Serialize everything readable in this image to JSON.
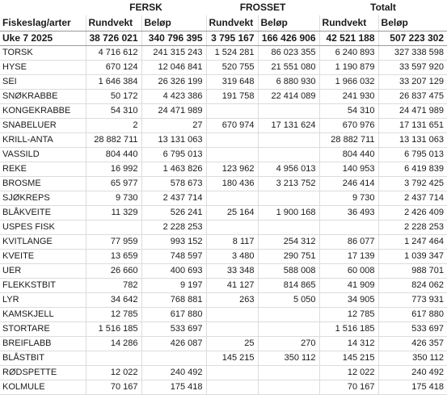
{
  "header": {
    "groups": [
      "FERSK",
      "FROSSET",
      "Totalt"
    ],
    "first_col": "Fiskeslag/arter",
    "sub": [
      "Rundvekt",
      "Beløp",
      "Rundvekt",
      "Beløp",
      "Rundvekt",
      "Beløp"
    ]
  },
  "week": {
    "label": "Uke 7 2025",
    "values": [
      "38 726 021",
      "340 796 395",
      "3 795 167",
      "166 426 906",
      "42 521 188",
      "507 223 302"
    ]
  },
  "rows": [
    {
      "name": "TORSK",
      "v": [
        "4 716 612",
        "241 315 243",
        "1 524 281",
        "86 023 355",
        "6 240 893",
        "327 338 598"
      ]
    },
    {
      "name": "HYSE",
      "v": [
        "670 124",
        "12 046 841",
        "520 755",
        "21 551 080",
        "1 190 879",
        "33 597 920"
      ]
    },
    {
      "name": "SEI",
      "v": [
        "1 646 384",
        "26 326 199",
        "319 648",
        "6 880 930",
        "1 966 032",
        "33 207 129"
      ]
    },
    {
      "name": "SNØKRABBE",
      "v": [
        "50 172",
        "4 423 386",
        "191 758",
        "22 414 089",
        "241 930",
        "26 837 475"
      ]
    },
    {
      "name": "KONGEKRABBE",
      "v": [
        "54 310",
        "24 471 989",
        "",
        "",
        "54 310",
        "24 471 989"
      ]
    },
    {
      "name": "SNABELUER",
      "v": [
        "2",
        "27",
        "670 974",
        "17 131 624",
        "670 976",
        "17 131 651"
      ]
    },
    {
      "name": "KRILL-ANTA",
      "v": [
        "28 882 711",
        "13 131 063",
        "",
        "",
        "28 882 711",
        "13 131 063"
      ]
    },
    {
      "name": "VASSILD",
      "v": [
        "804 440",
        "6 795 013",
        "",
        "",
        "804 440",
        "6 795 013"
      ]
    },
    {
      "name": "REKE",
      "v": [
        "16 992",
        "1 463 826",
        "123 962",
        "4 956 013",
        "140 953",
        "6 419 839"
      ]
    },
    {
      "name": "BROSME",
      "v": [
        "65 977",
        "578 673",
        "180 436",
        "3 213 752",
        "246 414",
        "3 792 425"
      ]
    },
    {
      "name": "SJØKREPS",
      "v": [
        "9 730",
        "2 437 714",
        "",
        "",
        "9 730",
        "2 437 714"
      ]
    },
    {
      "name": "BLÅKVEITE",
      "v": [
        "11 329",
        "526 241",
        "25 164",
        "1 900 168",
        "36 493",
        "2 426 409"
      ]
    },
    {
      "name": "USPES FISK",
      "v": [
        "",
        "2 228 253",
        "",
        "",
        "",
        "2 228 253"
      ]
    },
    {
      "name": "KVITLANGE",
      "v": [
        "77 959",
        "993 152",
        "8 117",
        "254 312",
        "86 077",
        "1 247 464"
      ]
    },
    {
      "name": "KVEITE",
      "v": [
        "13 659",
        "748 597",
        "3 480",
        "290 751",
        "17 139",
        "1 039 347"
      ]
    },
    {
      "name": "UER",
      "v": [
        "26 660",
        "400 693",
        "33 348",
        "588 008",
        "60 008",
        "988 701"
      ]
    },
    {
      "name": "FLEKKSTBIT",
      "v": [
        "782",
        "9 197",
        "41 127",
        "814 865",
        "41 909",
        "824 062"
      ]
    },
    {
      "name": "LYR",
      "v": [
        "34 642",
        "768 881",
        "263",
        "5 050",
        "34 905",
        "773 931"
      ]
    },
    {
      "name": "KAMSKJELL",
      "v": [
        "12 785",
        "617 880",
        "",
        "",
        "12 785",
        "617 880"
      ]
    },
    {
      "name": "STORTARE",
      "v": [
        "1 516 185",
        "533 697",
        "",
        "",
        "1 516 185",
        "533 697"
      ]
    },
    {
      "name": "BREIFLABB",
      "v": [
        "14 286",
        "426 087",
        "25",
        "270",
        "14 312",
        "426 357"
      ]
    },
    {
      "name": "BLÅSTBIT",
      "v": [
        "",
        "",
        "145 215",
        "350 112",
        "145 215",
        "350 112"
      ]
    },
    {
      "name": "RØDSPETTE",
      "v": [
        "12 022",
        "240 492",
        "",
        "",
        "12 022",
        "240 492"
      ]
    },
    {
      "name": "KOLMULE",
      "v": [
        "70 167",
        "175 418",
        "",
        "",
        "70 167",
        "175 418"
      ]
    }
  ]
}
